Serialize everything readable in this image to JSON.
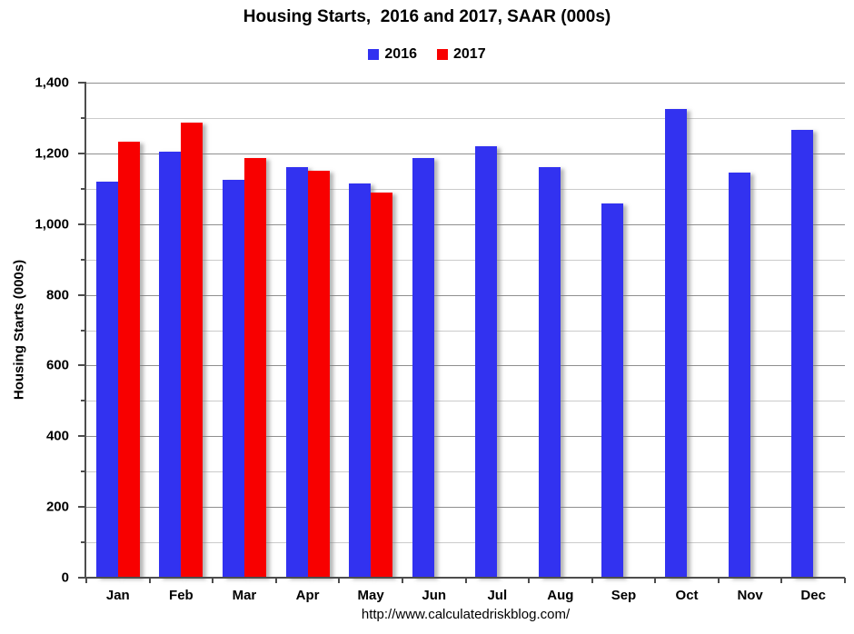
{
  "chart_data": {
    "type": "bar",
    "title": "Housing Starts,  2016 and 2017, SAAR (000s)",
    "ylabel": "Housing Starts (000s)",
    "xlabel": "",
    "footer": "http://www.calculatedriskblog.com/",
    "categories": [
      "Jan",
      "Feb",
      "Mar",
      "Apr",
      "May",
      "Jun",
      "Jul",
      "Aug",
      "Sep",
      "Oct",
      "Nov",
      "Dec"
    ],
    "series": [
      {
        "name": "2016",
        "color": "#3232F0",
        "values": [
          1120,
          1206,
          1124,
          1160,
          1115,
          1188,
          1220,
          1162,
          1058,
          1326,
          1146,
          1266
        ]
      },
      {
        "name": "2017",
        "color": "#F80000",
        "values": [
          1232,
          1286,
          1186,
          1152,
          1090,
          null,
          null,
          null,
          null,
          null,
          null,
          null
        ]
      }
    ],
    "ylim": [
      0,
      1400
    ],
    "y_major_step": 200,
    "y_minor_step": 100,
    "grid": "horizontal-major-and-minor",
    "legend_position": "top-center",
    "colors": {
      "major_grid": "#8F8F8F",
      "minor_grid": "#CBCBCB",
      "axis": "#4D4D4D",
      "text": "#000000",
      "background": "#FFFFFF"
    }
  }
}
